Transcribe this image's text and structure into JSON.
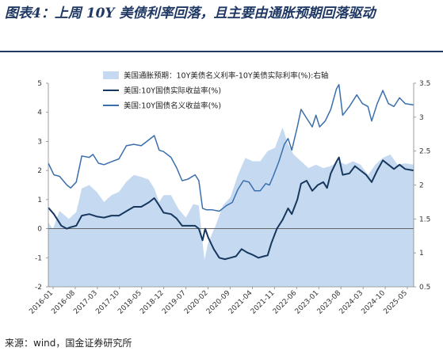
{
  "title": "图表4：上周 10Y 美债利率回落，且主要由通胀预期回落驱动",
  "source": "来源：wind，国金证券研究所",
  "chart_data": {
    "type": "line",
    "legend_position": "top-left",
    "grid": false,
    "left_axis": {
      "ylim": [
        -2,
        5
      ],
      "ticks": [
        "-2",
        "-1",
        "0",
        "1",
        "2",
        "3",
        "4",
        "5"
      ]
    },
    "right_axis": {
      "ylim": [
        0.5,
        3.5
      ],
      "ticks": [
        "0.5",
        "1",
        "1.5",
        "2",
        "2.5",
        "3",
        "3.5"
      ]
    },
    "x_labels": [
      "2016-01",
      "2016-08",
      "2017-03",
      "2017-10",
      "2018-05",
      "2018-12",
      "2019-07",
      "2020-02",
      "2020-09",
      "2021-04",
      "2021-11",
      "2022-06",
      "2023-01",
      "2023-08",
      "2024-03",
      "2024-10",
      "2025-05"
    ],
    "x_range": [
      2016.0,
      2025.83
    ],
    "series": [
      {
        "name": "美国通胀预期：10Y美债名义利率-10Y美债实际利率(%):右轴",
        "type": "area",
        "axis": "right",
        "color": "#c5daf0",
        "points": [
          [
            2016.0,
            1.45
          ],
          [
            2016.12,
            1.35
          ],
          [
            2016.3,
            1.62
          ],
          [
            2016.55,
            1.5
          ],
          [
            2016.75,
            1.6
          ],
          [
            2016.9,
            1.95
          ],
          [
            2017.1,
            2.0
          ],
          [
            2017.3,
            1.9
          ],
          [
            2017.5,
            1.75
          ],
          [
            2017.7,
            1.85
          ],
          [
            2017.9,
            1.9
          ],
          [
            2018.1,
            2.05
          ],
          [
            2018.3,
            2.15
          ],
          [
            2018.5,
            2.12
          ],
          [
            2018.7,
            2.08
          ],
          [
            2018.85,
            1.95
          ],
          [
            2018.98,
            1.75
          ],
          [
            2019.1,
            1.85
          ],
          [
            2019.3,
            1.85
          ],
          [
            2019.5,
            1.65
          ],
          [
            2019.7,
            1.52
          ],
          [
            2019.9,
            1.72
          ],
          [
            2020.05,
            1.7
          ],
          [
            2020.14,
            1.2
          ],
          [
            2020.2,
            0.9
          ],
          [
            2020.3,
            1.15
          ],
          [
            2020.5,
            1.4
          ],
          [
            2020.7,
            1.7
          ],
          [
            2020.9,
            1.82
          ],
          [
            2021.1,
            2.15
          ],
          [
            2021.3,
            2.4
          ],
          [
            2021.5,
            2.35
          ],
          [
            2021.7,
            2.35
          ],
          [
            2021.9,
            2.5
          ],
          [
            2022.1,
            2.55
          ],
          [
            2022.3,
            2.85
          ],
          [
            2022.45,
            2.6
          ],
          [
            2022.6,
            2.45
          ],
          [
            2022.8,
            2.35
          ],
          [
            2023.0,
            2.25
          ],
          [
            2023.2,
            2.3
          ],
          [
            2023.4,
            2.25
          ],
          [
            2023.6,
            2.28
          ],
          [
            2023.8,
            2.35
          ],
          [
            2024.0,
            2.3
          ],
          [
            2024.2,
            2.35
          ],
          [
            2024.4,
            2.3
          ],
          [
            2024.6,
            2.15
          ],
          [
            2024.8,
            2.3
          ],
          [
            2025.0,
            2.4
          ],
          [
            2025.2,
            2.45
          ],
          [
            2025.4,
            2.3
          ],
          [
            2025.6,
            2.32
          ],
          [
            2025.83,
            2.3
          ]
        ]
      },
      {
        "name": "美国:10Y国债实际收益率(%)",
        "type": "line",
        "axis": "left",
        "color": "#17375e",
        "points": [
          [
            2016.0,
            0.72
          ],
          [
            2016.15,
            0.5
          ],
          [
            2016.35,
            0.1
          ],
          [
            2016.5,
            0.0
          ],
          [
            2016.6,
            0.05
          ],
          [
            2016.75,
            0.1
          ],
          [
            2016.9,
            0.45
          ],
          [
            2017.1,
            0.5
          ],
          [
            2017.3,
            0.42
          ],
          [
            2017.5,
            0.38
          ],
          [
            2017.7,
            0.45
          ],
          [
            2017.9,
            0.45
          ],
          [
            2018.1,
            0.6
          ],
          [
            2018.3,
            0.75
          ],
          [
            2018.5,
            0.75
          ],
          [
            2018.7,
            0.9
          ],
          [
            2018.85,
            1.05
          ],
          [
            2018.98,
            0.8
          ],
          [
            2019.1,
            0.55
          ],
          [
            2019.3,
            0.5
          ],
          [
            2019.45,
            0.35
          ],
          [
            2019.6,
            0.1
          ],
          [
            2019.75,
            0.1
          ],
          [
            2019.95,
            0.1
          ],
          [
            2020.05,
            0.0
          ],
          [
            2020.15,
            -0.4
          ],
          [
            2020.22,
            0.0
          ],
          [
            2020.3,
            -0.3
          ],
          [
            2020.45,
            -0.7
          ],
          [
            2020.6,
            -1.0
          ],
          [
            2020.75,
            -1.05
          ],
          [
            2020.9,
            -1.0
          ],
          [
            2021.05,
            -0.95
          ],
          [
            2021.2,
            -0.7
          ],
          [
            2021.35,
            -0.82
          ],
          [
            2021.5,
            -0.9
          ],
          [
            2021.65,
            -1.0
          ],
          [
            2021.8,
            -0.95
          ],
          [
            2021.9,
            -0.92
          ],
          [
            2022.0,
            -0.5
          ],
          [
            2022.15,
            0.0
          ],
          [
            2022.3,
            0.3
          ],
          [
            2022.45,
            0.7
          ],
          [
            2022.55,
            0.5
          ],
          [
            2022.7,
            1.0
          ],
          [
            2022.8,
            1.55
          ],
          [
            2022.95,
            1.65
          ],
          [
            2023.1,
            1.3
          ],
          [
            2023.25,
            1.5
          ],
          [
            2023.4,
            1.6
          ],
          [
            2023.5,
            1.4
          ],
          [
            2023.6,
            1.9
          ],
          [
            2023.75,
            2.3
          ],
          [
            2023.82,
            2.45
          ],
          [
            2023.92,
            1.85
          ],
          [
            2024.1,
            1.9
          ],
          [
            2024.25,
            2.15
          ],
          [
            2024.4,
            2.0
          ],
          [
            2024.55,
            1.85
          ],
          [
            2024.7,
            1.6
          ],
          [
            2024.85,
            2.0
          ],
          [
            2025.0,
            2.35
          ],
          [
            2025.15,
            2.2
          ],
          [
            2025.3,
            2.05
          ],
          [
            2025.45,
            2.2
          ],
          [
            2025.6,
            2.05
          ],
          [
            2025.83,
            2.0
          ]
        ]
      },
      {
        "name": "美国:10Y国债名义收益率(%)",
        "type": "line",
        "axis": "left",
        "color": "#3a6fad",
        "points": [
          [
            2016.0,
            2.25
          ],
          [
            2016.15,
            1.85
          ],
          [
            2016.3,
            1.8
          ],
          [
            2016.5,
            1.5
          ],
          [
            2016.6,
            1.4
          ],
          [
            2016.75,
            1.6
          ],
          [
            2016.9,
            2.5
          ],
          [
            2017.1,
            2.45
          ],
          [
            2017.2,
            2.55
          ],
          [
            2017.35,
            2.25
          ],
          [
            2017.5,
            2.2
          ],
          [
            2017.7,
            2.3
          ],
          [
            2017.9,
            2.4
          ],
          [
            2018.1,
            2.85
          ],
          [
            2018.3,
            2.9
          ],
          [
            2018.5,
            2.85
          ],
          [
            2018.7,
            3.05
          ],
          [
            2018.85,
            3.2
          ],
          [
            2018.98,
            2.7
          ],
          [
            2019.1,
            2.65
          ],
          [
            2019.3,
            2.45
          ],
          [
            2019.45,
            2.1
          ],
          [
            2019.6,
            1.65
          ],
          [
            2019.75,
            1.7
          ],
          [
            2019.95,
            1.85
          ],
          [
            2020.05,
            1.65
          ],
          [
            2020.15,
            0.7
          ],
          [
            2020.25,
            0.65
          ],
          [
            2020.4,
            0.65
          ],
          [
            2020.6,
            0.6
          ],
          [
            2020.8,
            0.8
          ],
          [
            2020.95,
            0.9
          ],
          [
            2021.1,
            1.35
          ],
          [
            2021.25,
            1.65
          ],
          [
            2021.4,
            1.6
          ],
          [
            2021.55,
            1.3
          ],
          [
            2021.7,
            1.3
          ],
          [
            2021.85,
            1.55
          ],
          [
            2021.95,
            1.5
          ],
          [
            2022.05,
            1.8
          ],
          [
            2022.2,
            2.3
          ],
          [
            2022.35,
            2.9
          ],
          [
            2022.45,
            3.1
          ],
          [
            2022.55,
            2.7
          ],
          [
            2022.7,
            3.5
          ],
          [
            2022.8,
            4.1
          ],
          [
            2022.95,
            3.8
          ],
          [
            2023.1,
            3.5
          ],
          [
            2023.2,
            3.9
          ],
          [
            2023.3,
            3.5
          ],
          [
            2023.45,
            3.7
          ],
          [
            2023.6,
            4.1
          ],
          [
            2023.75,
            4.8
          ],
          [
            2023.82,
            4.95
          ],
          [
            2023.92,
            3.9
          ],
          [
            2024.1,
            4.2
          ],
          [
            2024.3,
            4.6
          ],
          [
            2024.45,
            4.3
          ],
          [
            2024.6,
            4.2
          ],
          [
            2024.7,
            3.7
          ],
          [
            2024.85,
            4.3
          ],
          [
            2025.0,
            4.75
          ],
          [
            2025.15,
            4.3
          ],
          [
            2025.3,
            4.2
          ],
          [
            2025.45,
            4.5
          ],
          [
            2025.6,
            4.3
          ],
          [
            2025.83,
            4.25
          ]
        ]
      }
    ]
  }
}
